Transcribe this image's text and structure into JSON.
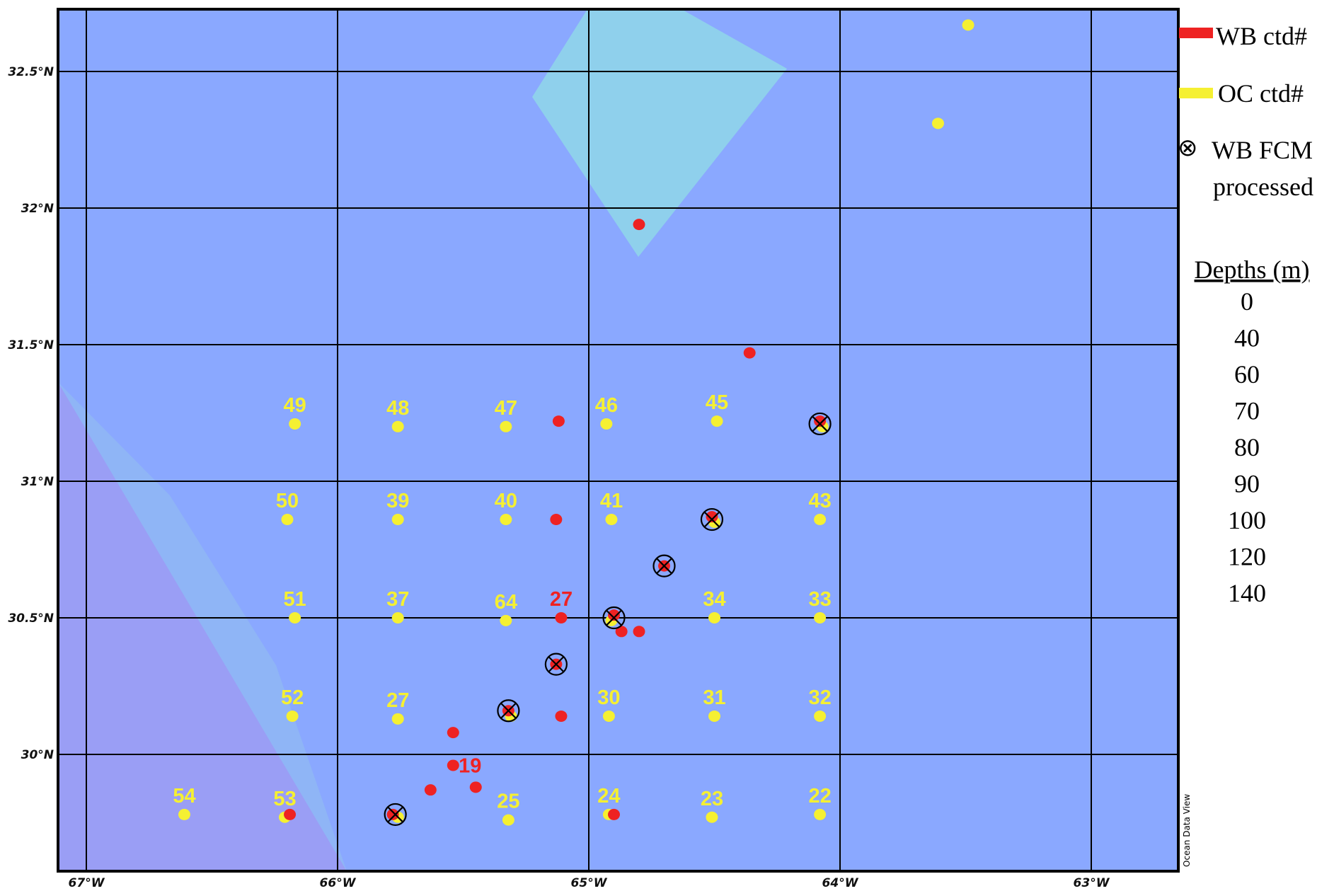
{
  "map": {
    "axes": {
      "lat_labels": [
        {
          "value": 32.5,
          "text": "32.5°N"
        },
        {
          "value": 32.0,
          "text": "32°N"
        },
        {
          "value": 31.5,
          "text": "31.5°N"
        },
        {
          "value": 31.0,
          "text": "31°N"
        },
        {
          "value": 30.5,
          "text": "30.5°N"
        },
        {
          "value": 30.0,
          "text": "30°N"
        }
      ],
      "lon_labels": [
        {
          "value": -67,
          "text": "67°W"
        },
        {
          "value": -66,
          "text": "66°W"
        },
        {
          "value": -65,
          "text": "65°W"
        },
        {
          "value": -64,
          "text": "64°W"
        },
        {
          "value": -63,
          "text": "63°W"
        }
      ]
    },
    "colors": {
      "ocean": "#8AA8FF",
      "shelf": "#8FD0EC",
      "deep_region": "#9A9EF5",
      "light_band": "#8FB5F6",
      "wb_station": "#EE2222",
      "oc_station": "#F5F032",
      "grid": "#000000"
    },
    "oc_stations": [
      {
        "label": "49",
        "lon": -66.17,
        "lat": 31.21
      },
      {
        "label": "48",
        "lon": -65.76,
        "lat": 31.2
      },
      {
        "label": "47",
        "lon": -65.33,
        "lat": 31.2
      },
      {
        "label": "46",
        "lon": -64.93,
        "lat": 31.21
      },
      {
        "label": "45",
        "lon": -64.49,
        "lat": 31.22
      },
      {
        "label": "",
        "lon": -64.07,
        "lat": 31.2
      },
      {
        "label": "50",
        "lon": -66.2,
        "lat": 30.86
      },
      {
        "label": "39",
        "lon": -65.76,
        "lat": 30.86
      },
      {
        "label": "40",
        "lon": -65.33,
        "lat": 30.86
      },
      {
        "label": "41",
        "lon": -64.91,
        "lat": 30.86
      },
      {
        "label": "",
        "lon": -64.5,
        "lat": 30.85
      },
      {
        "label": "43",
        "lon": -64.08,
        "lat": 30.86
      },
      {
        "label": "51",
        "lon": -66.17,
        "lat": 30.5
      },
      {
        "label": "37",
        "lon": -65.76,
        "lat": 30.5
      },
      {
        "label": "64",
        "lon": -65.33,
        "lat": 30.49
      },
      {
        "label": "",
        "lon": -64.91,
        "lat": 30.49
      },
      {
        "label": "34",
        "lon": -64.5,
        "lat": 30.5
      },
      {
        "label": "33",
        "lon": -64.08,
        "lat": 30.5
      },
      {
        "label": "52",
        "lon": -66.18,
        "lat": 30.14
      },
      {
        "label": "27",
        "lon": -65.76,
        "lat": 30.13
      },
      {
        "label": "",
        "lon": -65.31,
        "lat": 30.14
      },
      {
        "label": "30",
        "lon": -64.92,
        "lat": 30.14
      },
      {
        "label": "31",
        "lon": -64.5,
        "lat": 30.14
      },
      {
        "label": "32",
        "lon": -64.08,
        "lat": 30.14
      },
      {
        "label": "54",
        "lon": -66.61,
        "lat": 29.78
      },
      {
        "label": "53",
        "lon": -66.21,
        "lat": 29.77
      },
      {
        "label": "",
        "lon": -65.76,
        "lat": 29.77
      },
      {
        "label": "25",
        "lon": -65.32,
        "lat": 29.76
      },
      {
        "label": "24",
        "lon": -64.92,
        "lat": 29.78
      },
      {
        "label": "23",
        "lon": -64.51,
        "lat": 29.77
      },
      {
        "label": "22",
        "lon": -64.08,
        "lat": 29.78
      },
      {
        "label": "",
        "lon": -63.49,
        "lat": 32.67
      },
      {
        "label": "",
        "lon": -63.61,
        "lat": 32.31
      }
    ],
    "wb_stations": [
      {
        "label": "",
        "lon": -64.8,
        "lat": 31.94
      },
      {
        "label": "",
        "lon": -64.36,
        "lat": 31.47
      },
      {
        "label": "",
        "lon": -65.12,
        "lat": 31.22
      },
      {
        "label": "",
        "lon": -64.08,
        "lat": 31.22
      },
      {
        "label": "",
        "lon": -65.13,
        "lat": 30.86
      },
      {
        "label": "",
        "lon": -64.51,
        "lat": 30.87
      },
      {
        "label": "",
        "lon": -64.7,
        "lat": 30.69
      },
      {
        "label": "27",
        "lon": -65.11,
        "lat": 30.5
      },
      {
        "label": "",
        "lon": -64.9,
        "lat": 30.51
      },
      {
        "label": "",
        "lon": -64.87,
        "lat": 30.45
      },
      {
        "label": "",
        "lon": -64.8,
        "lat": 30.45
      },
      {
        "label": "",
        "lon": -65.13,
        "lat": 30.33
      },
      {
        "label": "",
        "lon": -65.32,
        "lat": 30.16
      },
      {
        "label": "",
        "lon": -65.11,
        "lat": 30.14
      },
      {
        "label": "",
        "lon": -65.54,
        "lat": 30.08
      },
      {
        "label": "19",
        "lon": -65.54,
        "lat": 29.96
      },
      {
        "label": "",
        "lon": -65.45,
        "lat": 29.88
      },
      {
        "label": "",
        "lon": -65.63,
        "lat": 29.87
      },
      {
        "label": "",
        "lon": -65.78,
        "lat": 29.78
      },
      {
        "label": "",
        "lon": -66.19,
        "lat": 29.78
      },
      {
        "label": "",
        "lon": -64.9,
        "lat": 29.78
      }
    ],
    "fcm_processed": [
      {
        "lon": -64.08,
        "lat": 31.21
      },
      {
        "lon": -64.51,
        "lat": 30.86
      },
      {
        "lon": -64.7,
        "lat": 30.69
      },
      {
        "lon": -64.9,
        "lat": 30.5
      },
      {
        "lon": -65.13,
        "lat": 30.33
      },
      {
        "lon": -65.32,
        "lat": 30.16
      },
      {
        "lon": -65.77,
        "lat": 29.78
      }
    ],
    "watermark": "Ocean Data View"
  },
  "legend": {
    "wb_label": "WB ctd#",
    "oc_label": "OC ctd#",
    "fcm_symbol": "⊗",
    "fcm_label_line1": "WB FCM",
    "fcm_label_line2": "processed",
    "depths_title": "Depths (m)",
    "depths": [
      "0",
      "40",
      "60",
      "70",
      "80",
      "90",
      "100",
      "120",
      "140"
    ]
  }
}
